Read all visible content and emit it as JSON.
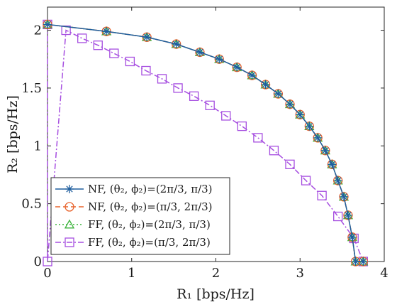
{
  "chart_data": {
    "type": "line",
    "xlabel": "R₁ [bps/Hz]",
    "ylabel": "R₂ [bps/Hz]",
    "xlim": [
      0,
      4
    ],
    "ylim": [
      0,
      2.2
    ],
    "xticks": [
      0,
      1,
      2,
      3,
      4
    ],
    "yticks": [
      0,
      0.5,
      1,
      1.5,
      2
    ],
    "xtick_labels": [
      "0",
      "1",
      "2",
      "3",
      "4"
    ],
    "ytick_labels": [
      "0",
      "0.5",
      "1",
      "1.5",
      "2"
    ],
    "grid": false,
    "legend_position": "bottom-left",
    "series": [
      {
        "name": "NF, (θ₂, ϕ₂)=(2π/3, π/3)",
        "color": "#1f5e9e",
        "dash": "solid",
        "marker": "asterisk",
        "x": [
          0,
          0.7,
          1.18,
          1.53,
          1.81,
          2.04,
          2.25,
          2.43,
          2.59,
          2.74,
          2.88,
          3.0,
          3.11,
          3.21,
          3.3,
          3.38,
          3.45,
          3.52,
          3.57,
          3.62,
          3.66,
          3.75
        ],
        "y": [
          2.05,
          1.99,
          1.94,
          1.88,
          1.81,
          1.75,
          1.68,
          1.61,
          1.53,
          1.45,
          1.36,
          1.27,
          1.17,
          1.07,
          0.96,
          0.84,
          0.7,
          0.56,
          0.4,
          0.21,
          0.0,
          0.0
        ]
      },
      {
        "name": "NF, (θ₂, ϕ₂)=(π/3, 2π/3)",
        "color": "#e8632c",
        "dash": "dashed",
        "marker": "circle",
        "x": [
          0,
          0.7,
          1.18,
          1.53,
          1.81,
          2.04,
          2.25,
          2.43,
          2.59,
          2.74,
          2.88,
          3.0,
          3.11,
          3.21,
          3.3,
          3.38,
          3.45,
          3.52,
          3.57,
          3.62,
          3.66,
          3.75
        ],
        "y": [
          2.05,
          1.99,
          1.94,
          1.88,
          1.81,
          1.75,
          1.68,
          1.61,
          1.53,
          1.45,
          1.36,
          1.27,
          1.17,
          1.07,
          0.96,
          0.84,
          0.7,
          0.56,
          0.4,
          0.21,
          0.0,
          0.0
        ]
      },
      {
        "name": "FF, (θ₂, ϕ₂)=(2π/3, π/3)",
        "color": "#3db33d",
        "dash": "dotted",
        "marker": "triangle",
        "x": [
          0,
          0.7,
          1.18,
          1.53,
          1.81,
          2.04,
          2.25,
          2.43,
          2.59,
          2.74,
          2.88,
          3.0,
          3.11,
          3.21,
          3.3,
          3.38,
          3.45,
          3.52,
          3.57,
          3.62,
          3.66,
          3.75
        ],
        "y": [
          2.05,
          1.99,
          1.94,
          1.88,
          1.81,
          1.75,
          1.68,
          1.61,
          1.53,
          1.45,
          1.36,
          1.27,
          1.17,
          1.07,
          0.96,
          0.84,
          0.7,
          0.56,
          0.4,
          0.21,
          0.0,
          0.0
        ]
      },
      {
        "name": "FF, (θ₂, ϕ₂)=(π/3, 2π/3)",
        "color": "#a64ee0",
        "dash": "dashdot",
        "marker": "square",
        "x": [
          0,
          0,
          0.22,
          0.41,
          0.6,
          0.79,
          0.98,
          1.17,
          1.36,
          1.55,
          1.74,
          1.93,
          2.12,
          2.31,
          2.5,
          2.69,
          2.88,
          3.07,
          3.26,
          3.45,
          3.64,
          3.75
        ],
        "y": [
          2.05,
          0,
          2.0,
          1.93,
          1.87,
          1.8,
          1.73,
          1.65,
          1.58,
          1.5,
          1.43,
          1.35,
          1.26,
          1.17,
          1.07,
          0.96,
          0.84,
          0.7,
          0.57,
          0.39,
          0.2,
          0.0
        ]
      }
    ]
  }
}
